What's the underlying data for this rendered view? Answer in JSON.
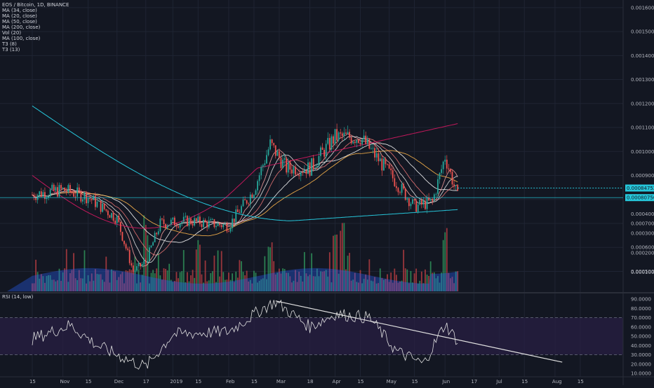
{
  "colors": {
    "background": "#131722",
    "grid": "#1f2433",
    "up": "#26a69a",
    "down": "#ef5350",
    "up_volume": "#2e8b57",
    "down_volume": "#a83a3f",
    "volume_ma": "#2962ff",
    "ma34": "#f5f5f5",
    "ma20": "#e57373",
    "ma50": "#ffb74d",
    "ma200": "#26c6da",
    "ma100": "#c2185b",
    "t3_8": "#ef9a9a",
    "t3_13": "#e0e0e0",
    "rsi_line": "#e0e0e0",
    "rsi_band": "#2a1f45",
    "trendline": "#e0e0e0",
    "price_label": "#26c6da"
  },
  "legend": [
    "EOS / Bitcoin, 1D, BINANCE",
    "MA (34, close)",
    "MA (20, close)",
    "MA (50, close)",
    "MA (200, close)",
    "Vol (20)",
    "MA (100, close)",
    "T3 (8)",
    "T3 (13)"
  ],
  "rsi_legend": "RSI (14, low)",
  "price_labels": [
    "0.00084752",
    "0.00080750"
  ],
  "chart_data": [
    {
      "type": "line",
      "subtype": "candlestick",
      "symbol": "EOS / Bitcoin",
      "interval": "1D",
      "exchange": "BINANCE",
      "y_axis_ticks": [
        "0.0005000",
        "0.0006000",
        "0.0007000",
        "0.0008000",
        "0.0009000",
        "0.0010000",
        "0.0011000",
        "0.0012000",
        "0.0013000",
        "0.0014000",
        "0.0015000",
        "0.0016000"
      ],
      "ylim": [
        0.00044,
        0.00162
      ],
      "x_ticks": [
        "15",
        "Nov",
        "15",
        "Dec",
        "17",
        "2019",
        "15",
        "Feb",
        "15",
        "Mar",
        "18",
        "Apr",
        "15",
        "May",
        "15",
        "Jun",
        "17",
        "Jul",
        "15",
        "Aug",
        "15"
      ],
      "close_series_approx": [
        {
          "date": "2018-10-15",
          "close": 0.00082
        },
        {
          "date": "2018-11-01",
          "close": 0.00084
        },
        {
          "date": "2018-11-15",
          "close": 0.00081
        },
        {
          "date": "2018-12-01",
          "close": 0.00072
        },
        {
          "date": "2018-12-10",
          "close": 0.0005
        },
        {
          "date": "2018-12-17",
          "close": 0.00054
        },
        {
          "date": "2018-12-25",
          "close": 0.0007
        },
        {
          "date": "2019-01-10",
          "close": 0.00071
        },
        {
          "date": "2019-02-01",
          "close": 0.00069
        },
        {
          "date": "2019-02-15",
          "close": 0.00084
        },
        {
          "date": "2019-02-24",
          "close": 0.00103
        },
        {
          "date": "2019-03-05",
          "close": 0.00093
        },
        {
          "date": "2019-03-18",
          "close": 0.00093
        },
        {
          "date": "2019-04-01",
          "close": 0.00106
        },
        {
          "date": "2019-04-15",
          "close": 0.00106
        },
        {
          "date": "2019-05-01",
          "close": 0.00091
        },
        {
          "date": "2019-05-15",
          "close": 0.00077
        },
        {
          "date": "2019-05-25",
          "close": 0.00079
        },
        {
          "date": "2019-06-01",
          "close": 0.00098
        },
        {
          "date": "2019-06-08",
          "close": 0.00081
        }
      ],
      "last_price": 0.0008075,
      "marked_price": 0.00084752,
      "overlays": [
        "MA (34, close)",
        "MA (20, close)",
        "MA (50, close)",
        "MA (200, close)",
        "MA (100, close)",
        "T3 (8)",
        "T3 (13)"
      ]
    },
    {
      "type": "bar",
      "name": "Vol (20)",
      "y_axis_ticks": [
        "0.0001000",
        "0.0002000",
        "0.0003000",
        "0.0004000"
      ],
      "ylim": [
        0,
        0.00042
      ],
      "peaks_approx": [
        {
          "date": "2018-12-17",
          "value": 0.00035
        },
        {
          "date": "2019-01-15",
          "value": 0.00027
        },
        {
          "date": "2019-02-24",
          "value": 0.00028
        },
        {
          "date": "2019-04-01",
          "value": 0.00031
        },
        {
          "date": "2019-04-05",
          "value": 0.00038
        },
        {
          "date": "2019-06-01",
          "value": 0.00033
        }
      ]
    },
    {
      "type": "line",
      "name": "RSI (14, low)",
      "y_axis_ticks": [
        "10.0000",
        "20.0000",
        "30.0000",
        "40.0000",
        "50.0000",
        "60.0000",
        "70.0000",
        "80.0000",
        "90.0000"
      ],
      "ylim": [
        10,
        90
      ],
      "bands": [
        30,
        70
      ],
      "values_approx": [
        {
          "date": "2018-10-15",
          "rsi": 47
        },
        {
          "date": "2018-11-05",
          "rsi": 62
        },
        {
          "date": "2018-11-20",
          "rsi": 40
        },
        {
          "date": "2018-12-10",
          "rsi": 22
        },
        {
          "date": "2018-12-17",
          "rsi": 17
        },
        {
          "date": "2019-01-01",
          "rsi": 52
        },
        {
          "date": "2019-02-01",
          "rsi": 55
        },
        {
          "date": "2019-02-20",
          "rsi": 80
        },
        {
          "date": "2019-02-27",
          "rsi": 87
        },
        {
          "date": "2019-03-18",
          "rsi": 60
        },
        {
          "date": "2019-04-01",
          "rsi": 74
        },
        {
          "date": "2019-04-20",
          "rsi": 70
        },
        {
          "date": "2019-05-05",
          "rsi": 34
        },
        {
          "date": "2019-05-20",
          "rsi": 20
        },
        {
          "date": "2019-06-01",
          "rsi": 63
        },
        {
          "date": "2019-06-08",
          "rsi": 45
        }
      ],
      "trendline": [
        {
          "date": "2019-02-27",
          "rsi": 88
        },
        {
          "date": "2019-08-05",
          "rsi": 22
        }
      ]
    }
  ]
}
